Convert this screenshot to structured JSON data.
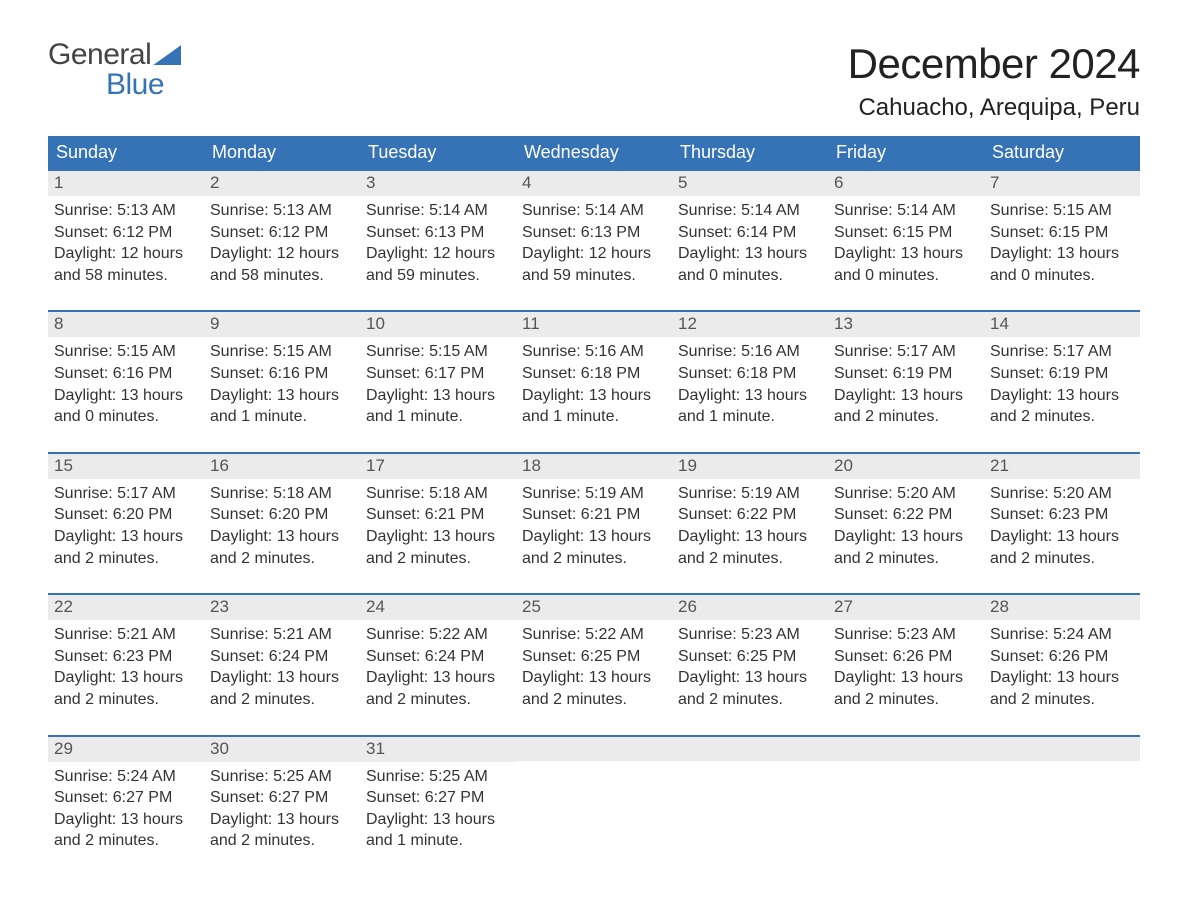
{
  "brand": {
    "top": "General",
    "bottom": "Blue",
    "accent_color": "#3672b6",
    "text_color": "#444444"
  },
  "title": "December 2024",
  "subtitle": "Cahuacho, Arequipa, Peru",
  "colors": {
    "header_bg": "#3672b6",
    "header_text": "#ffffff",
    "daynum_bg": "#ebebeb",
    "daynum_text": "#555555",
    "body_text": "#333333",
    "page_bg": "#ffffff",
    "week_border": "#3672b6"
  },
  "typography": {
    "title_fontsize": 42,
    "subtitle_fontsize": 24,
    "weekday_fontsize": 18,
    "daynum_fontsize": 17,
    "body_fontsize": 16,
    "font_family": "Arial"
  },
  "weekdays": [
    "Sunday",
    "Monday",
    "Tuesday",
    "Wednesday",
    "Thursday",
    "Friday",
    "Saturday"
  ],
  "labels": {
    "sunrise": "Sunrise:",
    "sunset": "Sunset:",
    "daylight": "Daylight:"
  },
  "weeks": [
    [
      {
        "day": 1,
        "sunrise": "5:13 AM",
        "sunset": "6:12 PM",
        "daylight": "12 hours and 58 minutes."
      },
      {
        "day": 2,
        "sunrise": "5:13 AM",
        "sunset": "6:12 PM",
        "daylight": "12 hours and 58 minutes."
      },
      {
        "day": 3,
        "sunrise": "5:14 AM",
        "sunset": "6:13 PM",
        "daylight": "12 hours and 59 minutes."
      },
      {
        "day": 4,
        "sunrise": "5:14 AM",
        "sunset": "6:13 PM",
        "daylight": "12 hours and 59 minutes."
      },
      {
        "day": 5,
        "sunrise": "5:14 AM",
        "sunset": "6:14 PM",
        "daylight": "13 hours and 0 minutes."
      },
      {
        "day": 6,
        "sunrise": "5:14 AM",
        "sunset": "6:15 PM",
        "daylight": "13 hours and 0 minutes."
      },
      {
        "day": 7,
        "sunrise": "5:15 AM",
        "sunset": "6:15 PM",
        "daylight": "13 hours and 0 minutes."
      }
    ],
    [
      {
        "day": 8,
        "sunrise": "5:15 AM",
        "sunset": "6:16 PM",
        "daylight": "13 hours and 0 minutes."
      },
      {
        "day": 9,
        "sunrise": "5:15 AM",
        "sunset": "6:16 PM",
        "daylight": "13 hours and 1 minute."
      },
      {
        "day": 10,
        "sunrise": "5:15 AM",
        "sunset": "6:17 PM",
        "daylight": "13 hours and 1 minute."
      },
      {
        "day": 11,
        "sunrise": "5:16 AM",
        "sunset": "6:18 PM",
        "daylight": "13 hours and 1 minute."
      },
      {
        "day": 12,
        "sunrise": "5:16 AM",
        "sunset": "6:18 PM",
        "daylight": "13 hours and 1 minute."
      },
      {
        "day": 13,
        "sunrise": "5:17 AM",
        "sunset": "6:19 PM",
        "daylight": "13 hours and 2 minutes."
      },
      {
        "day": 14,
        "sunrise": "5:17 AM",
        "sunset": "6:19 PM",
        "daylight": "13 hours and 2 minutes."
      }
    ],
    [
      {
        "day": 15,
        "sunrise": "5:17 AM",
        "sunset": "6:20 PM",
        "daylight": "13 hours and 2 minutes."
      },
      {
        "day": 16,
        "sunrise": "5:18 AM",
        "sunset": "6:20 PM",
        "daylight": "13 hours and 2 minutes."
      },
      {
        "day": 17,
        "sunrise": "5:18 AM",
        "sunset": "6:21 PM",
        "daylight": "13 hours and 2 minutes."
      },
      {
        "day": 18,
        "sunrise": "5:19 AM",
        "sunset": "6:21 PM",
        "daylight": "13 hours and 2 minutes."
      },
      {
        "day": 19,
        "sunrise": "5:19 AM",
        "sunset": "6:22 PM",
        "daylight": "13 hours and 2 minutes."
      },
      {
        "day": 20,
        "sunrise": "5:20 AM",
        "sunset": "6:22 PM",
        "daylight": "13 hours and 2 minutes."
      },
      {
        "day": 21,
        "sunrise": "5:20 AM",
        "sunset": "6:23 PM",
        "daylight": "13 hours and 2 minutes."
      }
    ],
    [
      {
        "day": 22,
        "sunrise": "5:21 AM",
        "sunset": "6:23 PM",
        "daylight": "13 hours and 2 minutes."
      },
      {
        "day": 23,
        "sunrise": "5:21 AM",
        "sunset": "6:24 PM",
        "daylight": "13 hours and 2 minutes."
      },
      {
        "day": 24,
        "sunrise": "5:22 AM",
        "sunset": "6:24 PM",
        "daylight": "13 hours and 2 minutes."
      },
      {
        "day": 25,
        "sunrise": "5:22 AM",
        "sunset": "6:25 PM",
        "daylight": "13 hours and 2 minutes."
      },
      {
        "day": 26,
        "sunrise": "5:23 AM",
        "sunset": "6:25 PM",
        "daylight": "13 hours and 2 minutes."
      },
      {
        "day": 27,
        "sunrise": "5:23 AM",
        "sunset": "6:26 PM",
        "daylight": "13 hours and 2 minutes."
      },
      {
        "day": 28,
        "sunrise": "5:24 AM",
        "sunset": "6:26 PM",
        "daylight": "13 hours and 2 minutes."
      }
    ],
    [
      {
        "day": 29,
        "sunrise": "5:24 AM",
        "sunset": "6:27 PM",
        "daylight": "13 hours and 2 minutes."
      },
      {
        "day": 30,
        "sunrise": "5:25 AM",
        "sunset": "6:27 PM",
        "daylight": "13 hours and 2 minutes."
      },
      {
        "day": 31,
        "sunrise": "5:25 AM",
        "sunset": "6:27 PM",
        "daylight": "13 hours and 1 minute."
      },
      null,
      null,
      null,
      null
    ]
  ]
}
